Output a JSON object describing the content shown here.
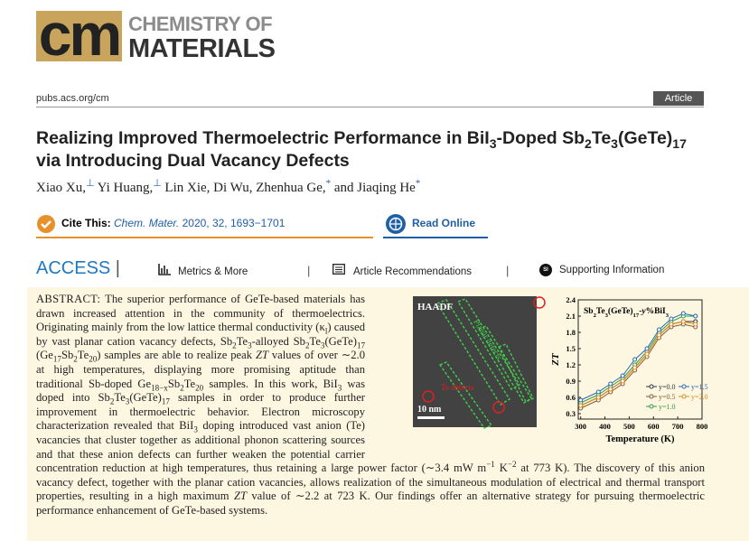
{
  "header": {
    "logo_mark": "cm",
    "logo_line1": "CHEMISTRY OF",
    "logo_line2": "MATERIALS",
    "url": "pubs.acs.org/cm",
    "article_type": "Article"
  },
  "title": [
    "Realizing Improved Thermoelectric Performance in BiI",
    {
      "sub": "3"
    },
    "-Doped Sb",
    {
      "sub": "2"
    },
    "Te",
    {
      "sub": "3"
    },
    "(GeTe)",
    {
      "sub": "17"
    },
    " via Introducing Dual Vacancy Defects"
  ],
  "authors": [
    "Xiao Xu,",
    {
      "sup": "⊥"
    },
    " Yi Huang,",
    {
      "sup": "⊥"
    },
    " Lin Xie, Di Wu, Zhenhua Ge,",
    {
      "sup": "*"
    },
    " and Jiaqing He",
    {
      "sup": "*"
    }
  ],
  "cite": {
    "label": "Cite This:",
    "journal": "Chem. Mater.",
    "details": " 2020, 32, 1693−1701"
  },
  "read_online": "Read Online",
  "access": {
    "label": "ACCESS",
    "metrics": "Metrics & More",
    "recommendations": "Article Recommendations",
    "si_icon": "SI",
    "supporting": "Supporting Information"
  },
  "abstract": {
    "label": "ABSTRACT:",
    "text": [
      " The superior performance of GeTe-based materials has drawn increased attention in the community of thermoelectrics. Originating mainly from the low lattice thermal conductivity (κ",
      {
        "sub": "l"
      },
      ") caused by vast planar cation vacancy defects, Sb",
      {
        "sub": "2"
      },
      "Te",
      {
        "sub": "3"
      },
      "-alloyed Sb",
      {
        "sub": "2"
      },
      "Te",
      {
        "sub": "3"
      },
      "(GeTe)",
      {
        "sub": "17"
      },
      " (Ge",
      {
        "sub": "17"
      },
      "Sb",
      {
        "sub": "2"
      },
      "Te",
      {
        "sub": "20"
      },
      ") samples are able to realize peak ",
      {
        "i": "ZT"
      },
      " values of over ∼2.0 at high temperatures, displaying more promising aptitude than traditional Sb-doped Ge",
      {
        "sub": "18−x"
      },
      "Sb",
      {
        "sub": "2"
      },
      "Te",
      {
        "sub": "20"
      },
      " samples. In this work, BiI",
      {
        "sub": "3"
      },
      " was doped into Sb",
      {
        "sub": "2"
      },
      "Te",
      {
        "sub": "3"
      },
      "(GeTe)",
      {
        "sub": "17"
      },
      " samples in order to produce further improvement in thermoelectric behavior. Electron microscopy characterization revealed that BiI",
      {
        "sub": "3"
      },
      " doping introduced vast anion (Te) vacancies that cluster together as additional phonon scattering sources and that these anion defects can further weaken the potential carrier concentration reduction at high temperatures, thus retaining a large power factor (∼3.4 mW m",
      {
        "sup": "−1"
      },
      " K",
      {
        "sup": "−2"
      },
      " at 773 K). The discovery of this anion vacancy defect, together with the planar cation vacancies, allows realization of the simultaneous modulation of electrical and thermal transport properties, resulting in a high maximum ",
      {
        "i": "ZT"
      },
      " value of ∼2.2 at 723 K. Our findings offer an alternative strategy for pursuing thermoelectric performance enhancement of GeTe-based systems."
    ]
  },
  "graphic": {
    "image": {
      "label": "HAADF",
      "planar": "Planar defects",
      "te": "Te defects",
      "scale": "10 nm"
    },
    "chart": {
      "type": "line",
      "title": [
        "Sb",
        {
          "sub": "2"
        },
        "Te",
        {
          "sub": "3"
        },
        "(GeTe)",
        {
          "sub": "17"
        },
        "-",
        {
          "i": "y"
        },
        "%BiI",
        {
          "sub": "3"
        }
      ],
      "x_label": "Temperature (K)",
      "y_label": "ZT",
      "x": [
        300,
        373,
        423,
        473,
        523,
        573,
        623,
        673,
        723,
        773
      ],
      "xlim": [
        290,
        800
      ],
      "xticks": [
        300,
        400,
        500,
        600,
        700,
        800
      ],
      "ylim": [
        0.2,
        2.4
      ],
      "yticks": [
        0.3,
        0.6,
        0.9,
        1.2,
        1.5,
        1.8,
        2.1,
        2.4
      ],
      "series": [
        {
          "name": "y=0.0",
          "color": "#333333",
          "values": [
            0.45,
            0.6,
            0.75,
            0.9,
            1.15,
            1.4,
            1.75,
            1.95,
            2.0,
            2.0
          ]
        },
        {
          "name": "y=0.5",
          "color": "#8b5a2b",
          "values": [
            0.4,
            0.55,
            0.7,
            0.85,
            1.1,
            1.35,
            1.7,
            1.9,
            1.95,
            1.9
          ]
        },
        {
          "name": "y=1.0",
          "color": "#2e9e3e",
          "values": [
            0.5,
            0.65,
            0.8,
            0.95,
            1.2,
            1.45,
            1.8,
            2.0,
            2.1,
            2.1
          ]
        },
        {
          "name": "y=1.5",
          "color": "#2a6bb0",
          "values": [
            0.55,
            0.7,
            0.85,
            1.0,
            1.3,
            1.5,
            1.85,
            2.05,
            2.15,
            2.1
          ]
        },
        {
          "name": "y=2.0",
          "color": "#e08a1e",
          "values": [
            0.45,
            0.6,
            0.75,
            0.9,
            1.15,
            1.4,
            1.75,
            1.95,
            2.0,
            1.95
          ]
        }
      ]
    }
  }
}
